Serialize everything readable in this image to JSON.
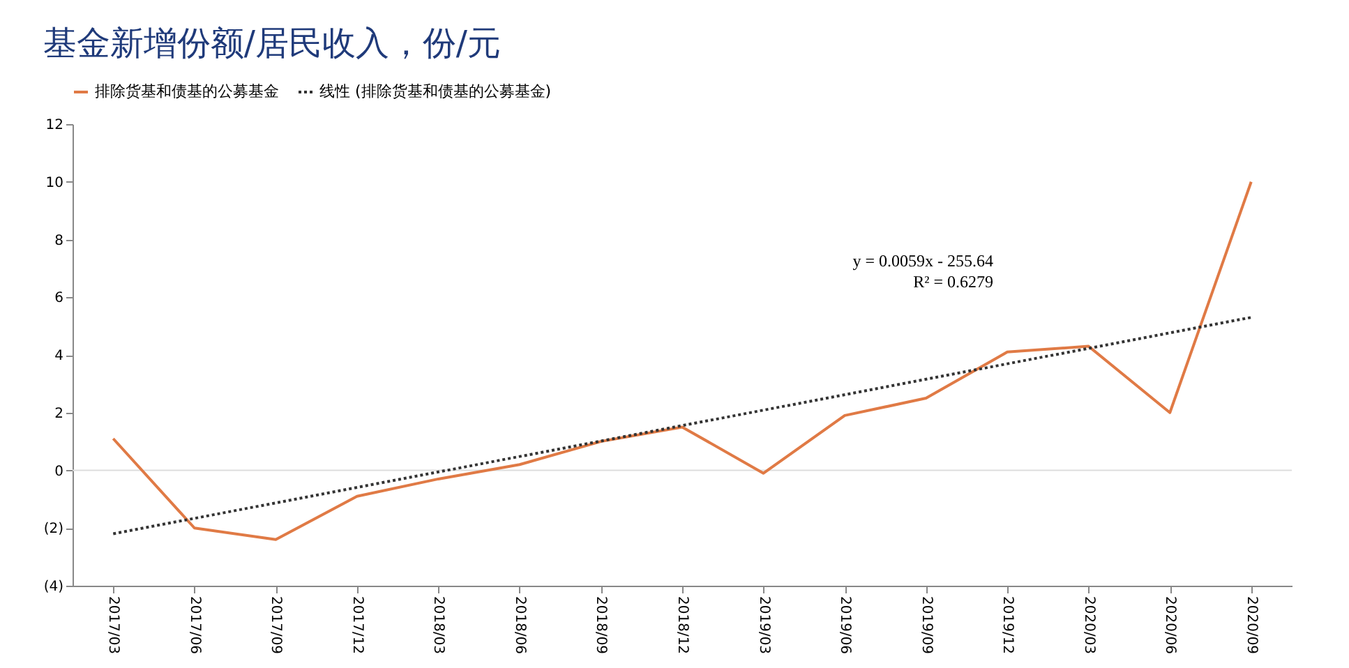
{
  "chart_data": {
    "type": "line",
    "title": "基金新增份额/居民收入，份/元",
    "categories": [
      "2017/03",
      "2017/06",
      "2017/09",
      "2017/12",
      "2018/03",
      "2018/06",
      "2018/09",
      "2018/12",
      "2019/03",
      "2019/06",
      "2019/09",
      "2019/12",
      "2020/03",
      "2020/06",
      "2020/09"
    ],
    "series": [
      {
        "name": "排除货基和债基的公募基金",
        "color": "#e07a45",
        "values": [
          1.1,
          -2.0,
          -2.4,
          -0.9,
          -0.3,
          0.2,
          1.0,
          1.5,
          -0.1,
          1.9,
          2.5,
          4.1,
          4.3,
          2.0,
          10.0
        ]
      },
      {
        "name": "线性 (排除货基和债基的公募基金)",
        "color": "#333333",
        "type": "line",
        "line_style": "dotted",
        "x": [
          "2017/03",
          "2020/09"
        ],
        "values": [
          -2.2,
          5.3
        ]
      }
    ],
    "ylim": [
      -4,
      12
    ],
    "yticks": [
      {
        "value": -4,
        "label": "(4)"
      },
      {
        "value": -2,
        "label": "(2)"
      },
      0,
      2,
      4,
      6,
      8,
      10,
      12
    ],
    "ref_lines": [
      {
        "axis": "y",
        "value": 0,
        "color": "#dddddd"
      }
    ],
    "annotations": [
      "y = 0.0059x - 255.64",
      "R² = 0.6279"
    ],
    "legend": "top",
    "grid": false,
    "line_style": "solid",
    "marker": "none"
  }
}
